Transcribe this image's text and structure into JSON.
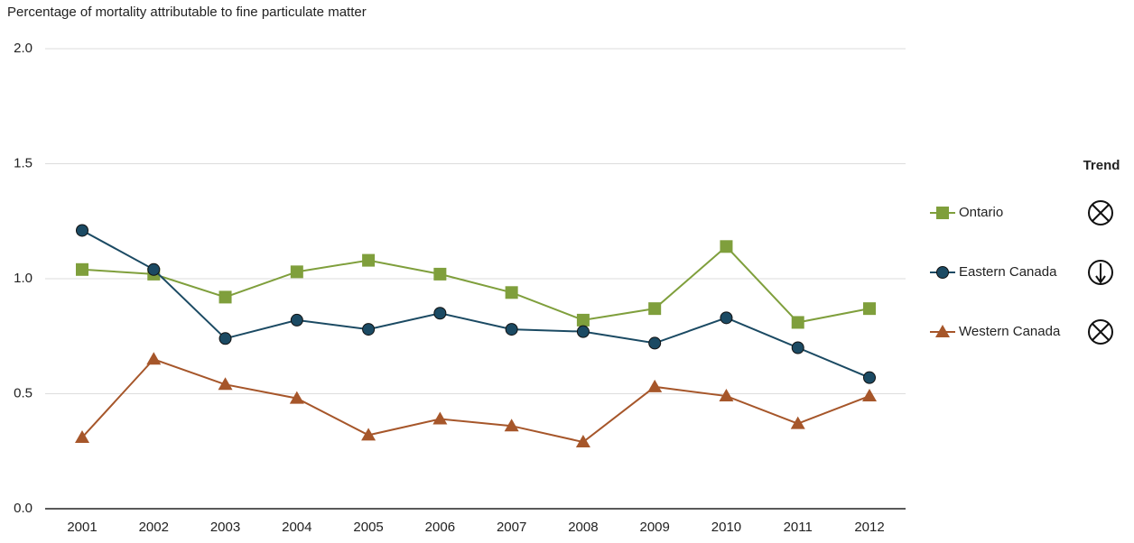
{
  "chart_data": {
    "type": "line",
    "title": "Percentage of mortality attributable to fine particulate matter",
    "x": [
      "2001",
      "2002",
      "2003",
      "2004",
      "2005",
      "2006",
      "2007",
      "2008",
      "2009",
      "2010",
      "2011",
      "2012"
    ],
    "series": [
      {
        "name": "Ontario",
        "color": "#7f9f3c",
        "marker": "square",
        "values": [
          1.04,
          1.02,
          0.92,
          1.03,
          1.08,
          1.02,
          0.94,
          0.82,
          0.87,
          1.14,
          0.81,
          0.87
        ]
      },
      {
        "name": "Eastern Canada",
        "color": "#1b4a63",
        "marker": "circle",
        "values": [
          1.21,
          1.04,
          0.74,
          0.82,
          0.78,
          0.85,
          0.78,
          0.77,
          0.72,
          0.83,
          0.7,
          0.57
        ]
      },
      {
        "name": "Western Canada",
        "color": "#a6562a",
        "marker": "triangle",
        "values": [
          0.31,
          0.65,
          0.54,
          0.48,
          0.32,
          0.39,
          0.36,
          0.29,
          0.53,
          0.49,
          0.37,
          0.49
        ]
      }
    ],
    "ylim": [
      0,
      2
    ],
    "yticks": [
      {
        "value": 0,
        "label": "0.0"
      },
      {
        "value": 0.5,
        "label": "0.5"
      },
      {
        "value": 1,
        "label": "1.0"
      },
      {
        "value": 1.5,
        "label": "1.5"
      },
      {
        "value": 2,
        "label": "2.0"
      }
    ],
    "grid": true,
    "legend_title": "Trend",
    "legend": "right"
  }
}
